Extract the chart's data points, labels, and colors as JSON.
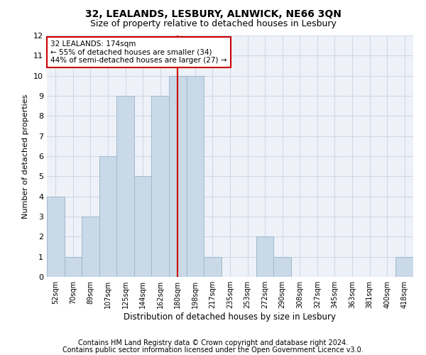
{
  "title_line1": "32, LEALANDS, LESBURY, ALNWICK, NE66 3QN",
  "title_line2": "Size of property relative to detached houses in Lesbury",
  "xlabel": "Distribution of detached houses by size in Lesbury",
  "ylabel": "Number of detached properties",
  "categories": [
    "52sqm",
    "70sqm",
    "89sqm",
    "107sqm",
    "125sqm",
    "144sqm",
    "162sqm",
    "180sqm",
    "198sqm",
    "217sqm",
    "235sqm",
    "253sqm",
    "272sqm",
    "290sqm",
    "308sqm",
    "327sqm",
    "345sqm",
    "363sqm",
    "381sqm",
    "400sqm",
    "418sqm"
  ],
  "values": [
    4,
    1,
    3,
    6,
    9,
    5,
    9,
    10,
    10,
    1,
    0,
    0,
    2,
    1,
    0,
    0,
    0,
    0,
    0,
    0,
    1
  ],
  "bar_color": "#c9d9e8",
  "bar_edgecolor": "#a0b8cc",
  "redline_x": 7,
  "annotation_line1": "32 LEALANDS: 174sqm",
  "annotation_line2": "← 55% of detached houses are smaller (34)",
  "annotation_line3": "44% of semi-detached houses are larger (27) →",
  "annotation_box_color": "#ffffff",
  "annotation_border_color": "#cc0000",
  "redline_color": "#cc0000",
  "ylim": [
    0,
    12
  ],
  "yticks": [
    0,
    1,
    2,
    3,
    4,
    5,
    6,
    7,
    8,
    9,
    10,
    11,
    12
  ],
  "grid_color": "#d0d8e8",
  "background_color": "#eef2f8",
  "footer_line1": "Contains HM Land Registry data © Crown copyright and database right 2024.",
  "footer_line2": "Contains public sector information licensed under the Open Government Licence v3.0.",
  "title_fontsize": 10,
  "subtitle_fontsize": 9,
  "footer_fontsize": 7
}
